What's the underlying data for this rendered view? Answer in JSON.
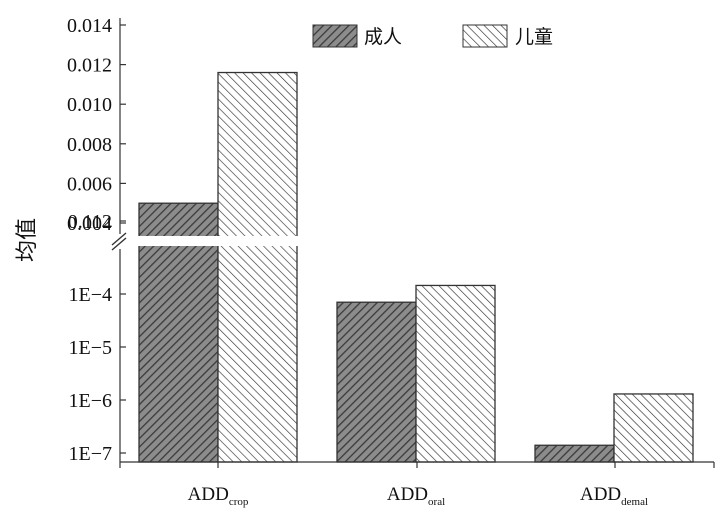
{
  "chart_data": {
    "type": "bar",
    "ylabel": "均值",
    "categories": [
      {
        "main": "ADD",
        "sub": "crop"
      },
      {
        "main": "ADD",
        "sub": "oral"
      },
      {
        "main": "ADD",
        "sub": "demal"
      }
    ],
    "series": [
      {
        "name": "成人",
        "values": [
          0.005,
          7e-05,
          1.4e-07
        ]
      },
      {
        "name": "儿童",
        "values": [
          0.0116,
          0.000145,
          1.3e-06
        ]
      }
    ],
    "y_axis": {
      "break": true,
      "upper_ticks": [
        "0.014",
        "0.012",
        "0.010",
        "0.008",
        "0.006",
        "0.004",
        "0.112"
      ],
      "lower_ticks": [
        "1E−4",
        "1E−5",
        "1E−6",
        "1E−7"
      ],
      "upper_range": [
        0.003,
        0.014
      ],
      "lower_scale": "log"
    },
    "legend": "top-center",
    "grid": false,
    "colors": {
      "adult_fill": "#8c8c8c",
      "adult_hatch": "#3a3a3a",
      "child_fill": "#ffffff",
      "child_hatch": "#333333"
    }
  }
}
